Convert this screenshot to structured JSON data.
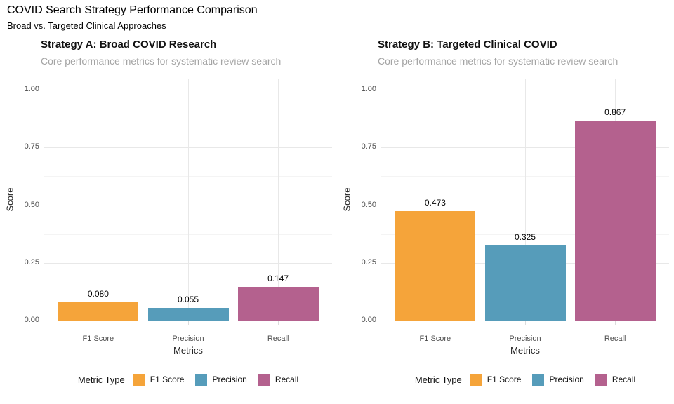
{
  "page": {
    "title": "COVID Search Strategy Performance Comparison",
    "subtitle": "Broad vs. Targeted Clinical Approaches"
  },
  "colors": {
    "f1_score": "#F5A43A",
    "precision": "#569CBA",
    "recall": "#B4618E",
    "grid_major": "#E8E8E8",
    "grid_minor": "#F4F4F4",
    "tick_label": "#4D4D4D",
    "panel_subtitle": "#A4A4A4"
  },
  "chart_data": [
    {
      "type": "bar",
      "title": "Strategy A: Broad COVID Research",
      "subtitle": "Core performance metrics for systematic review search",
      "xlabel": "Metrics",
      "ylabel": "Score",
      "categories": [
        "F1 Score",
        "Precision",
        "Recall"
      ],
      "values": [
        0.08,
        0.055,
        0.147
      ],
      "value_labels": [
        "0.080",
        "0.055",
        "0.147"
      ],
      "bar_colors": [
        "#F5A43A",
        "#569CBA",
        "#B4618E"
      ],
      "ylim": [
        0,
        1
      ],
      "y_major": [
        {
          "v": 0,
          "label": "0.00"
        },
        {
          "v": 0.25,
          "label": "0.25"
        },
        {
          "v": 0.5,
          "label": "0.50"
        },
        {
          "v": 0.75,
          "label": "0.75"
        },
        {
          "v": 1,
          "label": "1.00"
        }
      ],
      "y_minor": [
        0.125,
        0.375,
        0.625,
        0.875
      ],
      "grid": "on",
      "legend_position": "bottom"
    },
    {
      "type": "bar",
      "title": "Strategy B: Targeted Clinical COVID",
      "subtitle": "Core performance metrics for systematic review search",
      "xlabel": "Metrics",
      "ylabel": "Score",
      "categories": [
        "F1 Score",
        "Precision",
        "Recall"
      ],
      "values": [
        0.473,
        0.325,
        0.867
      ],
      "value_labels": [
        "0.473",
        "0.325",
        "0.867"
      ],
      "bar_colors": [
        "#F5A43A",
        "#569CBA",
        "#B4618E"
      ],
      "ylim": [
        0,
        1
      ],
      "y_major": [
        {
          "v": 0,
          "label": "0.00"
        },
        {
          "v": 0.25,
          "label": "0.25"
        },
        {
          "v": 0.5,
          "label": "0.50"
        },
        {
          "v": 0.75,
          "label": "0.75"
        },
        {
          "v": 1,
          "label": "1.00"
        }
      ],
      "y_minor": [
        0.125,
        0.375,
        0.625,
        0.875
      ],
      "grid": "on",
      "legend_position": "bottom"
    }
  ],
  "legend": {
    "title": "Metric Type",
    "entries": [
      {
        "label": "F1 Score",
        "color": "#F5A43A"
      },
      {
        "label": "Precision",
        "color": "#569CBA"
      },
      {
        "label": "Recall",
        "color": "#B4618E"
      }
    ]
  }
}
